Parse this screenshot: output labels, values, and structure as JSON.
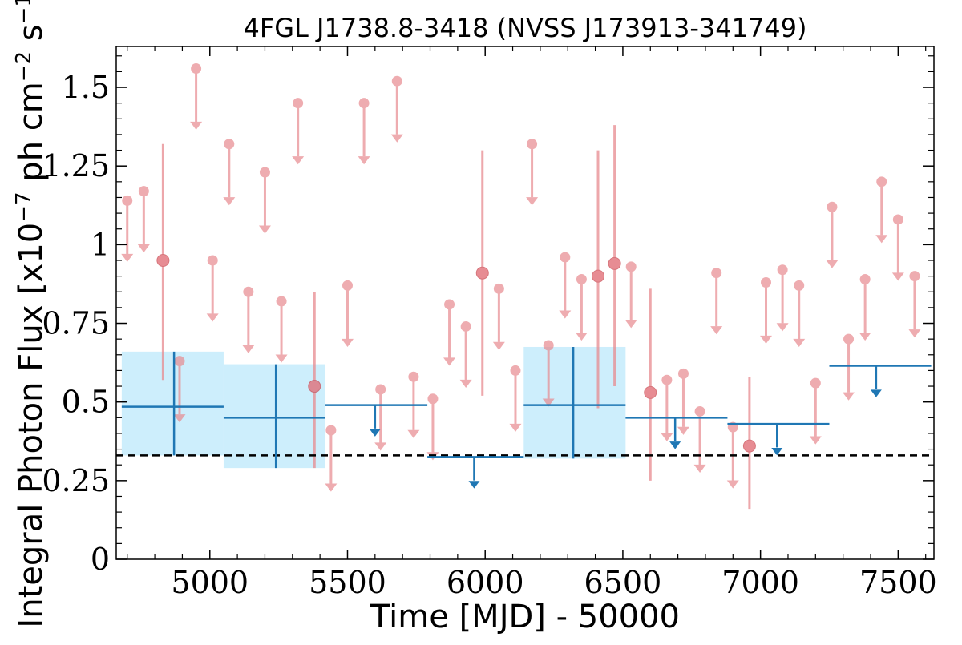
{
  "chart_data": {
    "type": "scatter",
    "title": "4FGL J1738.8-3418 (NVSS J173913-341749)",
    "xlabel": "Time [MJD] - 50000",
    "ylabel": "Integral Photon Flux [x10^-7 ph cm^-2 s^-1]",
    "xlim": [
      4660,
      7630
    ],
    "ylim": [
      0,
      1.63
    ],
    "x_ticks": [
      5000,
      5500,
      6000,
      6500,
      7000,
      7500
    ],
    "x_tick_labels": [
      "5000",
      "5500",
      "6000",
      "6500",
      "7000",
      "7500"
    ],
    "y_ticks": [
      0,
      0.25,
      0.5,
      0.75,
      1,
      1.25,
      1.5
    ],
    "y_tick_labels": [
      "0",
      "0.25",
      "0.5",
      "0.75",
      "1",
      "1.25",
      "1.5"
    ],
    "grid": false,
    "reference_line": {
      "y": 0.33,
      "style": "dashed",
      "color": "#000000"
    },
    "colors": {
      "upper_limit_red": "#e88a8f",
      "detection_red": "#e06670",
      "bin_blue": "#1f77b4",
      "band_fill": "#cdeefc"
    },
    "series": [
      {
        "kind": "monthly_upper_limits",
        "points": [
          {
            "x": 4700,
            "y": 1.14
          },
          {
            "x": 4760,
            "y": 1.17
          },
          {
            "x": 4890,
            "y": 0.63
          },
          {
            "x": 4950,
            "y": 1.56
          },
          {
            "x": 5010,
            "y": 0.95
          },
          {
            "x": 5070,
            "y": 1.32
          },
          {
            "x": 5140,
            "y": 0.85
          },
          {
            "x": 5200,
            "y": 1.23
          },
          {
            "x": 5260,
            "y": 0.82
          },
          {
            "x": 5320,
            "y": 1.45
          },
          {
            "x": 5440,
            "y": 0.41
          },
          {
            "x": 5500,
            "y": 0.87
          },
          {
            "x": 5560,
            "y": 1.45
          },
          {
            "x": 5620,
            "y": 0.54
          },
          {
            "x": 5680,
            "y": 1.52
          },
          {
            "x": 5740,
            "y": 0.58
          },
          {
            "x": 5810,
            "y": 0.51
          },
          {
            "x": 5870,
            "y": 0.81
          },
          {
            "x": 5930,
            "y": 0.74
          },
          {
            "x": 6050,
            "y": 0.86
          },
          {
            "x": 6110,
            "y": 0.6
          },
          {
            "x": 6170,
            "y": 1.32
          },
          {
            "x": 6230,
            "y": 0.68
          },
          {
            "x": 6290,
            "y": 0.96
          },
          {
            "x": 6350,
            "y": 0.89
          },
          {
            "x": 6530,
            "y": 0.93
          },
          {
            "x": 6660,
            "y": 0.57
          },
          {
            "x": 6720,
            "y": 0.59
          },
          {
            "x": 6780,
            "y": 0.47
          },
          {
            "x": 6840,
            "y": 0.91
          },
          {
            "x": 6900,
            "y": 0.42
          },
          {
            "x": 7020,
            "y": 0.88
          },
          {
            "x": 7080,
            "y": 0.92
          },
          {
            "x": 7140,
            "y": 0.87
          },
          {
            "x": 7200,
            "y": 0.56
          },
          {
            "x": 7260,
            "y": 1.12
          },
          {
            "x": 7320,
            "y": 0.7
          },
          {
            "x": 7380,
            "y": 0.89
          },
          {
            "x": 7440,
            "y": 1.2
          },
          {
            "x": 7500,
            "y": 1.08
          },
          {
            "x": 7560,
            "y": 0.9
          }
        ]
      },
      {
        "kind": "monthly_detections",
        "points": [
          {
            "x": 4830,
            "y": 0.95,
            "ylow": 0.57,
            "yhigh": 1.32
          },
          {
            "x": 5380,
            "y": 0.55,
            "ylow": 0.29,
            "yhigh": 0.85
          },
          {
            "x": 5990,
            "y": 0.91,
            "ylow": 0.52,
            "yhigh": 1.3
          },
          {
            "x": 6410,
            "y": 0.9,
            "ylow": 0.48,
            "yhigh": 1.3
          },
          {
            "x": 6470,
            "y": 0.94,
            "ylow": 0.55,
            "yhigh": 1.38
          },
          {
            "x": 6600,
            "y": 0.53,
            "ylow": 0.25,
            "yhigh": 0.86
          },
          {
            "x": 6960,
            "y": 0.36,
            "ylow": 0.16,
            "yhigh": 0.58
          }
        ]
      },
      {
        "kind": "yearly_detections",
        "bins": [
          {
            "x0": 4680,
            "x1": 5050,
            "xc": 4870,
            "y": 0.485,
            "ylow": 0.33,
            "yhigh": 0.66
          },
          {
            "x0": 5050,
            "x1": 5420,
            "xc": 5240,
            "y": 0.45,
            "ylow": 0.29,
            "yhigh": 0.62
          },
          {
            "x0": 6140,
            "x1": 6510,
            "xc": 6320,
            "y": 0.49,
            "ylow": 0.32,
            "yhigh": 0.675
          }
        ]
      },
      {
        "kind": "yearly_upper_limits",
        "bins": [
          {
            "x0": 5420,
            "x1": 5790,
            "xc": 5600,
            "y": 0.49
          },
          {
            "x0": 5790,
            "x1": 6140,
            "xc": 5960,
            "y": 0.325
          },
          {
            "x0": 6510,
            "x1": 6880,
            "xc": 6690,
            "y": 0.45
          },
          {
            "x0": 6880,
            "x1": 7250,
            "xc": 7060,
            "y": 0.43
          },
          {
            "x0": 7250,
            "x1": 7620,
            "xc": 7420,
            "y": 0.615
          }
        ]
      }
    ]
  }
}
